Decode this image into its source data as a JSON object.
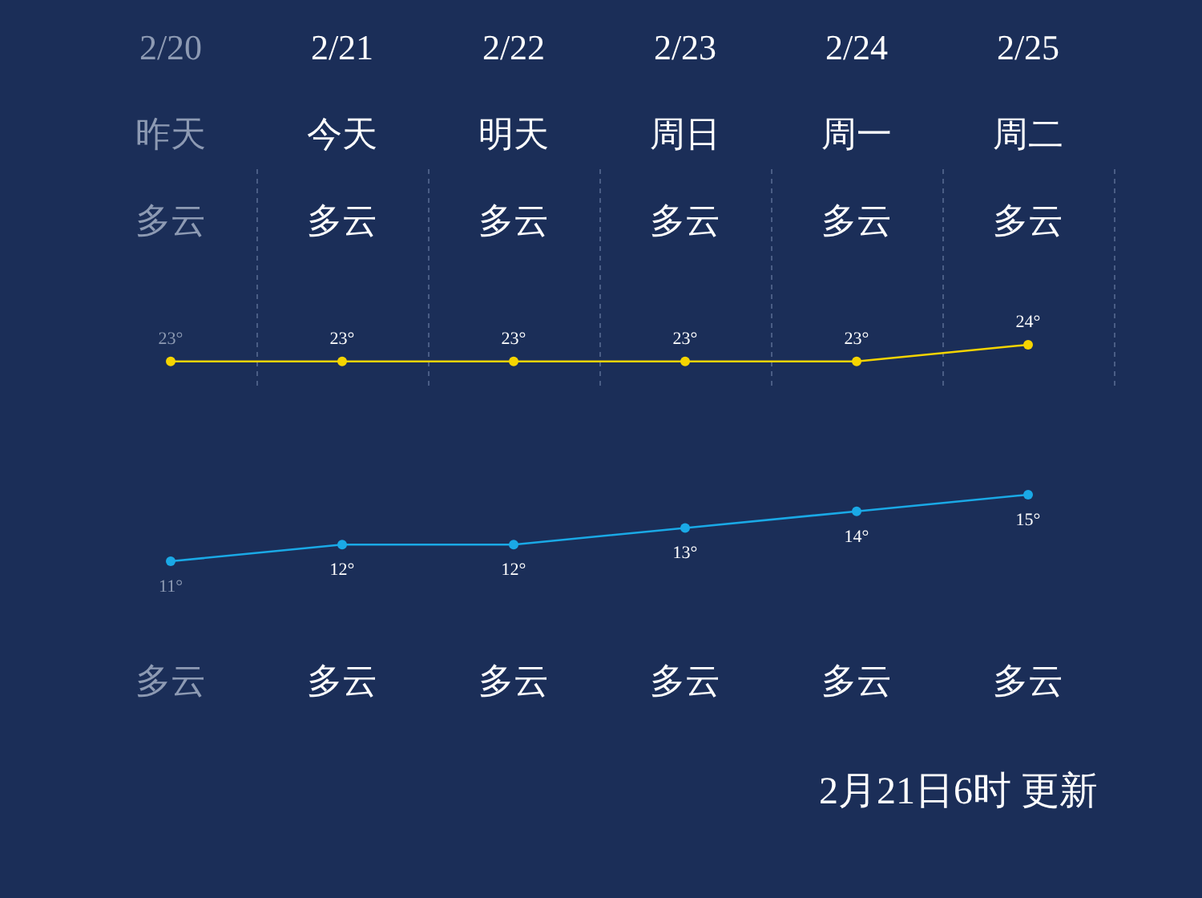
{
  "chart_data": {
    "type": "line",
    "categories": [
      "2/20",
      "2/21",
      "2/22",
      "2/23",
      "2/24",
      "2/25"
    ],
    "series": [
      {
        "color": "#f5d400",
        "values": [
          23,
          23,
          23,
          23,
          23,
          24
        ],
        "value_labels": [
          "23°",
          "23°",
          "23°",
          "23°",
          "23°",
          "24°"
        ]
      },
      {
        "color": "#1aa9e6",
        "values": [
          11,
          12,
          12,
          13,
          14,
          15
        ],
        "value_labels": [
          "11°",
          "12°",
          "12°",
          "13°",
          "14°",
          "15°"
        ]
      }
    ],
    "tick_labels": "x",
    "grid": "x",
    "marker": "circle",
    "annotations": [
      "昨天",
      "今天",
      "明天",
      "周日",
      "周一",
      "周二",
      "多云",
      "多云",
      "多云",
      "多云",
      "多云",
      "多云",
      "多云",
      "多云",
      "多云",
      "多云",
      "多云",
      "多云",
      "2月21日6时 更新"
    ]
  }
}
